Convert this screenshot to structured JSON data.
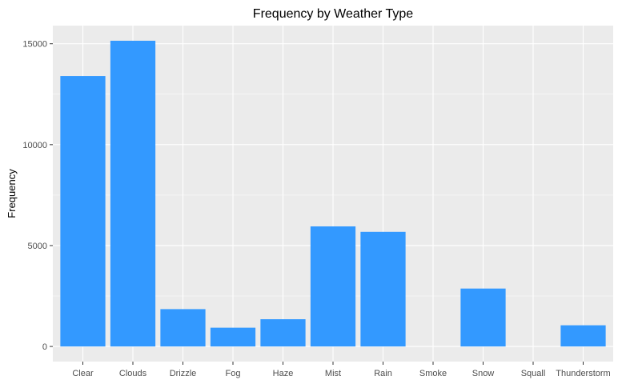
{
  "colors": {
    "panel_background": "#ebebeb",
    "grid_major": "#ffffff",
    "bar_fill": "#3399ff",
    "tick_mark": "#333333"
  },
  "chart_data": {
    "type": "bar",
    "title": "Frequency by Weather Type",
    "xlabel": "",
    "ylabel": "Frequency",
    "categories": [
      "Clear",
      "Clouds",
      "Drizzle",
      "Fog",
      "Haze",
      "Mist",
      "Rain",
      "Smoke",
      "Snow",
      "Squall",
      "Thunderstorm"
    ],
    "values": [
      13400,
      15150,
      1850,
      930,
      1350,
      5950,
      5680,
      0,
      2870,
      0,
      1050
    ],
    "ylim": [
      -750,
      15900
    ],
    "y_ticks": [
      0,
      5000,
      10000,
      15000
    ],
    "y_tick_labels": [
      "0",
      "5000",
      "10000",
      "15000"
    ],
    "grid": true,
    "legend": "none"
  }
}
